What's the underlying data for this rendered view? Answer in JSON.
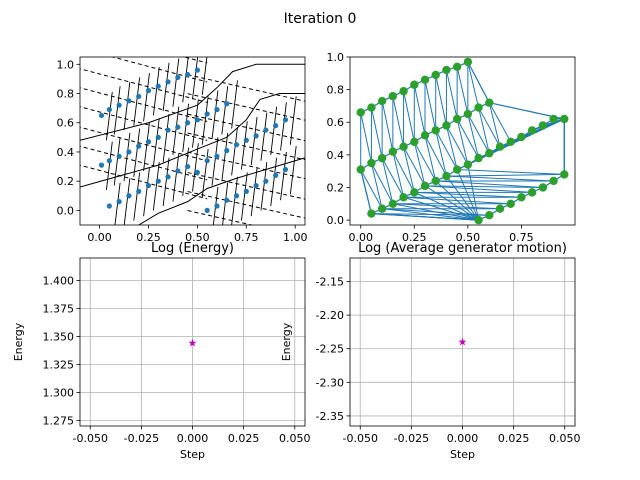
{
  "figure": {
    "suptitle": "Iteration 0"
  },
  "colors": {
    "points": "#1f77b4",
    "mesh_nodes": "#2ca02c",
    "mesh_edges": "#1f77b4",
    "marker": "#bf00bf",
    "grid": "#b0b0b0"
  },
  "chart_data": [
    {
      "type": "scatter",
      "panel": "top-left",
      "title": "",
      "description_overlay": "voronoi cells (solid) and dashed lines",
      "xlim": [
        -0.1,
        1.05
      ],
      "ylim": [
        -0.1,
        1.05
      ],
      "xticks": [
        0.0,
        0.25,
        0.5,
        0.75,
        1.0
      ],
      "xticklabels": [
        "0.00",
        "0.25",
        "0.50",
        "0.75",
        "1.00"
      ],
      "yticks": [
        0.0,
        0.2,
        0.4,
        0.6,
        0.8,
        1.0
      ],
      "yticklabels": [
        "0.0",
        "0.2",
        "0.4",
        "0.6",
        "0.8",
        "1.0"
      ],
      "series": [
        {
          "points": [
            [
              0.01,
              0.65
            ],
            [
              0.05,
              0.69
            ],
            [
              0.1,
              0.72
            ],
            [
              0.15,
              0.75
            ],
            [
              0.2,
              0.78
            ],
            [
              0.25,
              0.82
            ],
            [
              0.3,
              0.85
            ],
            [
              0.35,
              0.88
            ],
            [
              0.4,
              0.91
            ],
            [
              0.45,
              0.93
            ],
            [
              0.5,
              0.96
            ],
            [
              0.5,
              0.62
            ],
            [
              0.55,
              0.66
            ],
            [
              0.6,
              0.69
            ],
            [
              0.65,
              0.73
            ],
            [
              0.01,
              0.31
            ],
            [
              0.05,
              0.34
            ],
            [
              0.1,
              0.37
            ],
            [
              0.15,
              0.4
            ],
            [
              0.2,
              0.44
            ],
            [
              0.25,
              0.47
            ],
            [
              0.3,
              0.5
            ],
            [
              0.35,
              0.55
            ],
            [
              0.4,
              0.57
            ],
            [
              0.45,
              0.6
            ],
            [
              0.5,
              0.26
            ],
            [
              0.55,
              0.34
            ],
            [
              0.6,
              0.37
            ],
            [
              0.65,
              0.41
            ],
            [
              0.7,
              0.45
            ],
            [
              0.75,
              0.48
            ],
            [
              0.8,
              0.51
            ],
            [
              0.85,
              0.55
            ],
            [
              0.9,
              0.58
            ],
            [
              0.95,
              0.62
            ],
            [
              0.05,
              0.03
            ],
            [
              0.1,
              0.06
            ],
            [
              0.15,
              0.1
            ],
            [
              0.2,
              0.13
            ],
            [
              0.25,
              0.17
            ],
            [
              0.3,
              0.2
            ],
            [
              0.35,
              0.23
            ],
            [
              0.4,
              0.27
            ],
            [
              0.45,
              0.3
            ],
            [
              0.55,
              0.0
            ],
            [
              0.6,
              0.03
            ],
            [
              0.65,
              0.07
            ],
            [
              0.7,
              0.1
            ],
            [
              0.75,
              0.13
            ],
            [
              0.8,
              0.17
            ],
            [
              0.85,
              0.2
            ],
            [
              0.9,
              0.24
            ],
            [
              0.95,
              0.28
            ]
          ]
        }
      ]
    },
    {
      "type": "scatter",
      "panel": "top-right",
      "title": "",
      "xlim": [
        -0.05,
        1.0
      ],
      "ylim": [
        -0.03,
        1.0
      ],
      "xticks": [
        0.0,
        0.25,
        0.5,
        0.75
      ],
      "xticklabels": [
        "0.00",
        "0.25",
        "0.50",
        "0.75"
      ],
      "yticks": [
        0.0,
        0.2,
        0.4,
        0.6,
        0.8,
        1.0
      ],
      "yticklabels": [
        "0.0",
        "0.2",
        "0.4",
        "0.6",
        "0.8",
        "1.0"
      ],
      "series": [
        {
          "points": [
            [
              0.0,
              0.66
            ],
            [
              0.05,
              0.69
            ],
            [
              0.1,
              0.73
            ],
            [
              0.15,
              0.76
            ],
            [
              0.2,
              0.79
            ],
            [
              0.25,
              0.83
            ],
            [
              0.3,
              0.86
            ],
            [
              0.35,
              0.89
            ],
            [
              0.4,
              0.92
            ],
            [
              0.45,
              0.94
            ],
            [
              0.5,
              0.97
            ],
            [
              0.0,
              0.31
            ],
            [
              0.05,
              0.35
            ],
            [
              0.1,
              0.38
            ],
            [
              0.15,
              0.42
            ],
            [
              0.2,
              0.45
            ],
            [
              0.25,
              0.48
            ],
            [
              0.3,
              0.52
            ],
            [
              0.35,
              0.55
            ],
            [
              0.4,
              0.58
            ],
            [
              0.45,
              0.62
            ],
            [
              0.5,
              0.65
            ],
            [
              0.55,
              0.69
            ],
            [
              0.6,
              0.72
            ],
            [
              0.05,
              0.04
            ],
            [
              0.1,
              0.07
            ],
            [
              0.15,
              0.1
            ],
            [
              0.2,
              0.14
            ],
            [
              0.25,
              0.17
            ],
            [
              0.3,
              0.21
            ],
            [
              0.35,
              0.24
            ],
            [
              0.4,
              0.27
            ],
            [
              0.45,
              0.31
            ],
            [
              0.5,
              0.34
            ],
            [
              0.55,
              0.38
            ],
            [
              0.6,
              0.41
            ],
            [
              0.65,
              0.45
            ],
            [
              0.7,
              0.48
            ],
            [
              0.75,
              0.51
            ],
            [
              0.8,
              0.55
            ],
            [
              0.85,
              0.58
            ],
            [
              0.9,
              0.62
            ],
            [
              0.55,
              0.0
            ],
            [
              0.6,
              0.03
            ],
            [
              0.65,
              0.07
            ],
            [
              0.7,
              0.1
            ],
            [
              0.75,
              0.14
            ],
            [
              0.8,
              0.17
            ],
            [
              0.85,
              0.2
            ],
            [
              0.9,
              0.24
            ],
            [
              0.95,
              0.28
            ],
            [
              0.95,
              0.62
            ]
          ]
        }
      ]
    },
    {
      "type": "scatter",
      "panel": "bottom-left",
      "title": "Log (Energy)",
      "xlabel": "Step",
      "ylabel": "Energy",
      "xlim": [
        -0.055,
        0.055
      ],
      "ylim": [
        1.27,
        1.42
      ],
      "xticks": [
        -0.05,
        -0.025,
        0.0,
        0.025,
        0.05
      ],
      "xticklabels": [
        "-0.050",
        "-0.025",
        "0.000",
        "0.025",
        "0.050"
      ],
      "yticks": [
        1.275,
        1.3,
        1.325,
        1.35,
        1.375,
        1.4
      ],
      "yticklabels": [
        "1.275",
        "1.300",
        "1.325",
        "1.350",
        "1.375",
        "1.400"
      ],
      "grid": true,
      "series": [
        {
          "points": [
            [
              0.0,
              1.344
            ]
          ]
        }
      ]
    },
    {
      "type": "scatter",
      "panel": "bottom-right",
      "title": "Log (Average generator motion)",
      "xlabel": "Step",
      "ylabel": "Energy",
      "xlim": [
        -0.055,
        0.055
      ],
      "ylim": [
        -2.365,
        -2.115
      ],
      "xticks": [
        -0.05,
        -0.025,
        0.0,
        0.025,
        0.05
      ],
      "xticklabels": [
        "-0.050",
        "-0.025",
        "0.000",
        "0.025",
        "0.050"
      ],
      "yticks": [
        -2.35,
        -2.3,
        -2.25,
        -2.2,
        -2.15
      ],
      "yticklabels": [
        "-2.35",
        "-2.30",
        "-2.25",
        "-2.20",
        "-2.15"
      ],
      "grid": true,
      "series": [
        {
          "points": [
            [
              0.0,
              -2.24
            ]
          ]
        }
      ]
    }
  ]
}
